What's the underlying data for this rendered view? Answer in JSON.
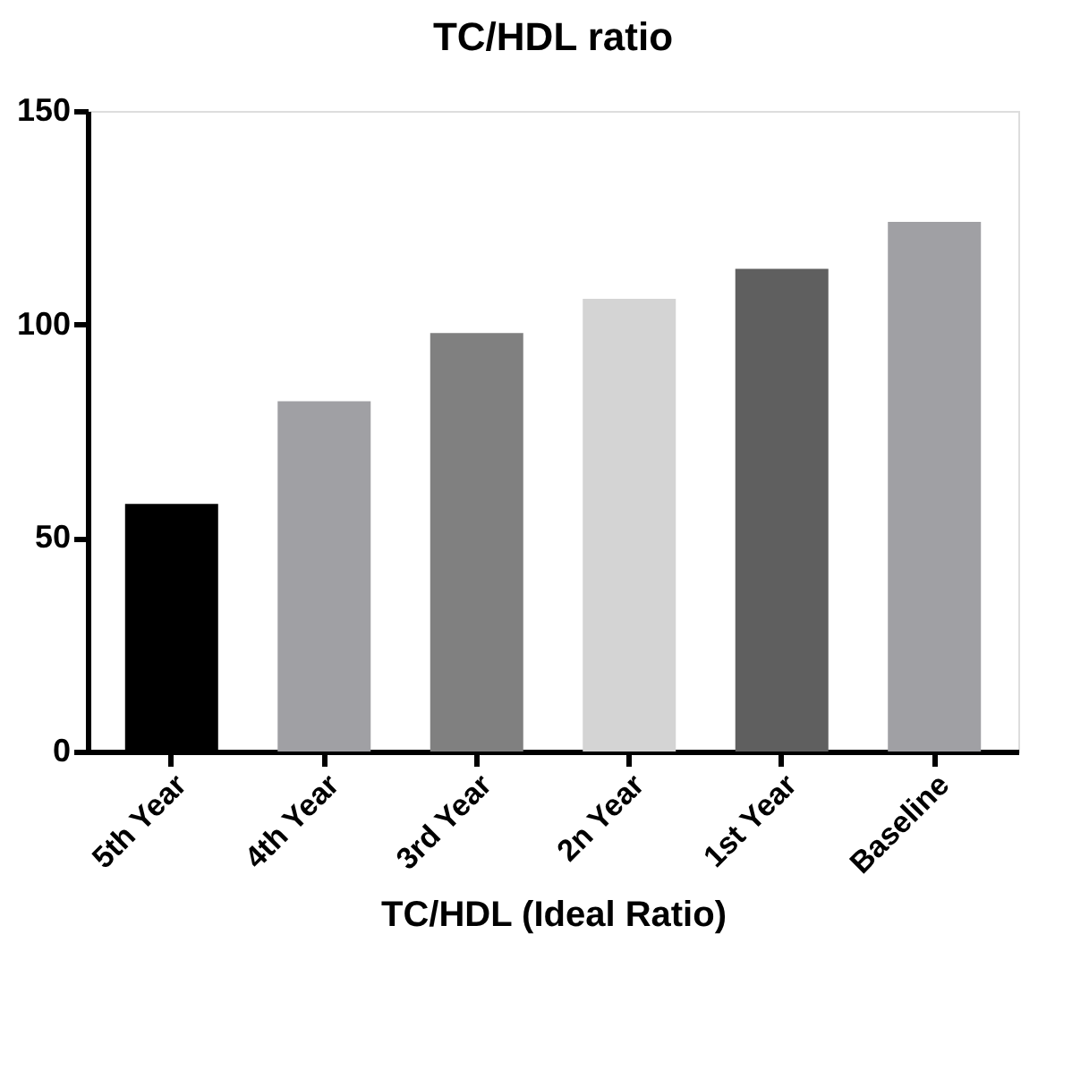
{
  "chart_data": {
    "type": "bar",
    "title": "TC/HDL ratio",
    "xlabel": "TC/HDL (Ideal Ratio)",
    "categories": [
      "5th Year",
      "4th Year",
      "3rd Year",
      "2n Year",
      "1st Year",
      "Baseline"
    ],
    "values": [
      58,
      82,
      98,
      106,
      113,
      124
    ],
    "colors": [
      "#000000",
      "#a0a0a4",
      "#808080",
      "#d4d4d4",
      "#5f5f5f",
      "#a0a0a4"
    ],
    "ylim": [
      0,
      150
    ],
    "yticks": [
      0,
      50,
      100,
      150
    ],
    "grid": false
  }
}
